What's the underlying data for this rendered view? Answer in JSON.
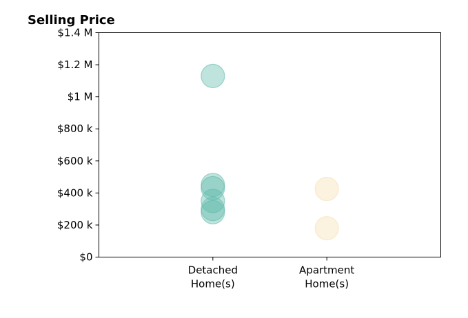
{
  "chart_data": {
    "type": "scatter",
    "title": "Selling Price",
    "xlabel": "",
    "ylabel": "",
    "categories": [
      [
        "Detached",
        "Home(s)"
      ],
      [
        "Apartment",
        "Home(s)"
      ]
    ],
    "xlim": [
      -1,
      2
    ],
    "ylim": [
      0,
      1400000
    ],
    "y_ticks": [
      0,
      200000,
      400000,
      600000,
      800000,
      1000000,
      1200000,
      1400000
    ],
    "y_tick_labels": [
      "$0",
      "$200 k",
      "$400 k",
      "$600 k",
      "$800 k",
      "$1 M",
      "$1.2 M",
      "$1.4 M"
    ],
    "grid": false,
    "legend": "none",
    "series": [
      {
        "category_index": 0,
        "color": "#5fb8ab",
        "values": [
          1130000,
          450000,
          430000,
          350000,
          300000,
          280000
        ]
      },
      {
        "category_index": 1,
        "color": "#f5deb0",
        "values": [
          425000,
          180000
        ]
      }
    ]
  }
}
